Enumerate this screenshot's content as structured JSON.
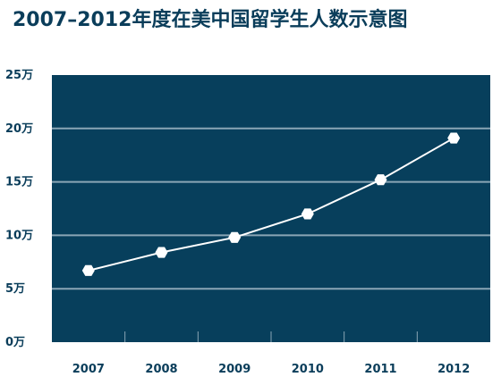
{
  "chart_data": {
    "type": "line",
    "title": "2007–2012年度在美中国留学生人数示意图",
    "xlabel": "",
    "ylabel": "",
    "categories": [
      "2007",
      "2008",
      "2009",
      "2010",
      "2011",
      "2012"
    ],
    "series": [
      {
        "values": [
          6.7,
          8.4,
          9.8,
          12.0,
          15.2,
          19.1
        ]
      }
    ],
    "ylim": [
      0,
      25
    ],
    "yticks": [
      {
        "value": 0,
        "label": "0万"
      },
      {
        "value": 5,
        "label": "5万"
      },
      {
        "value": 10,
        "label": "10万"
      },
      {
        "value": 15,
        "label": "15万"
      },
      {
        "value": 20,
        "label": "20万"
      },
      {
        "value": 25,
        "label": "25万"
      }
    ],
    "grid": true,
    "legend": "none",
    "colors": {
      "plot_background": "#073f5c",
      "grid_line": "#8aa6b6",
      "line": "#ffffff",
      "marker": "#ffffff",
      "text": "#0a3d5a"
    }
  }
}
